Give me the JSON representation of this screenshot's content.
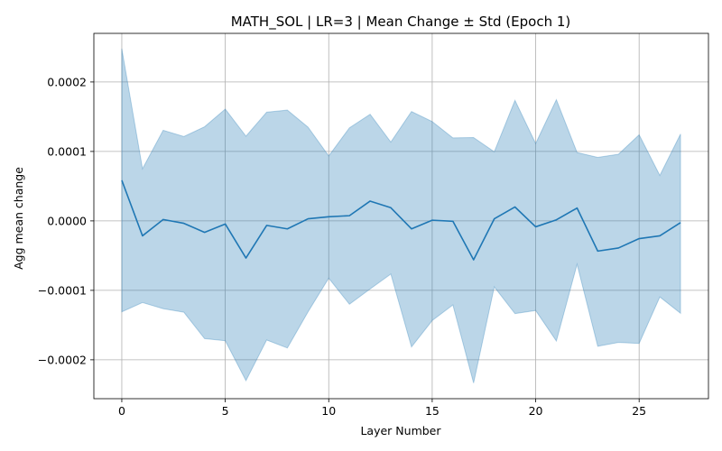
{
  "chart_data": {
    "type": "line",
    "title": "MATH_SOL | LR=3 | Mean Change ± Std (Epoch 1)",
    "xlabel": "Layer Number",
    "ylabel": "Agg mean change",
    "xlim": [
      -1.35,
      28.35
    ],
    "ylim": [
      -0.000256,
      0.00027
    ],
    "grid": true,
    "x_ticks": [
      0,
      5,
      10,
      15,
      20,
      25
    ],
    "x_tick_labels": [
      "0",
      "5",
      "10",
      "15",
      "20",
      "25"
    ],
    "y_ticks": [
      -0.0002,
      -0.0001,
      0.0,
      0.0001,
      0.0002
    ],
    "y_tick_labels": [
      "−0.0002",
      "−0.0001",
      "0.0000",
      "0.0001",
      "0.0002"
    ],
    "x": [
      0,
      1,
      2,
      3,
      4,
      5,
      6,
      7,
      8,
      9,
      10,
      11,
      12,
      13,
      14,
      15,
      16,
      17,
      18,
      19,
      20,
      21,
      22,
      23,
      24,
      25,
      26,
      27
    ],
    "series": [
      {
        "values": [
          5.85e-05,
          -2.15e-05,
          2e-06,
          -3.5e-06,
          -1.65e-05,
          -4.5e-06,
          -5.35e-05,
          -6.5e-06,
          -1.15e-05,
          3e-06,
          6e-06,
          7.5e-06,
          2.85e-05,
          1.9e-05,
          -1.15e-05,
          1e-06,
          -5e-07,
          -5.6e-05,
          3e-06,
          2e-05,
          -8.5e-06,
          1.5e-06,
          1.85e-05,
          -4.35e-05,
          -3.9e-05,
          -2.55e-05,
          -2.15e-05,
          -2.5e-06
        ],
        "lower": [
          -0.000131,
          -0.0001175,
          -0.0001265,
          -0.0001315,
          -0.0001695,
          -0.0001725,
          -0.00023,
          -0.0001715,
          -0.000183,
          -0.000131,
          -8.25e-05,
          -0.00012,
          -9.8e-05,
          -7.65e-05,
          -0.0001815,
          -0.0001435,
          -0.000121,
          -0.0002335,
          -9.5e-05,
          -0.0001335,
          -0.000129,
          -0.000173,
          -6.25e-05,
          -0.0001805,
          -0.000175,
          -0.0001765,
          -0.0001095,
          -0.000133
        ],
        "upper": [
          0.000248,
          7.5e-05,
          0.0001305,
          0.0001215,
          0.0001355,
          0.000161,
          0.000122,
          0.0001565,
          0.0001595,
          0.000135,
          9.35e-05,
          0.000134,
          0.0001535,
          0.0001135,
          0.0001575,
          0.000143,
          0.0001195,
          0.00012,
          9.95e-05,
          0.0001735,
          0.0001115,
          0.0001745,
          9.85e-05,
          9.15e-05,
          9.6e-05,
          0.000124,
          6.55e-05,
          0.000125
        ],
        "color": "#1f77b4",
        "band_color": "#1f77b4"
      }
    ]
  }
}
